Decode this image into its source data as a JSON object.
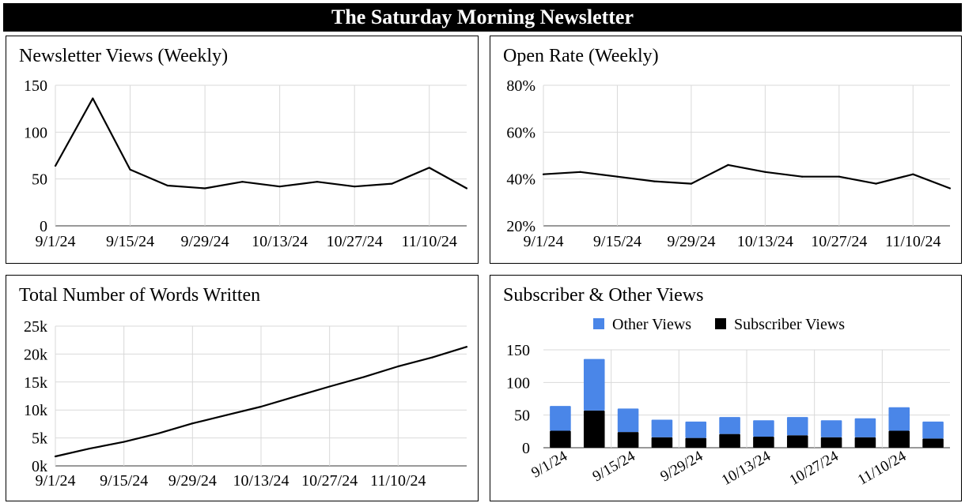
{
  "banner": {
    "title": "The Saturday Morning Newsletter"
  },
  "chart_data": [
    {
      "id": "views",
      "type": "line",
      "title": "Newsletter Views (Weekly)",
      "ylim": [
        0,
        150
      ],
      "yticks": [
        "0",
        "50",
        "100",
        "150"
      ],
      "ytick_values": [
        0,
        50,
        100,
        150
      ],
      "xtick_labels": [
        "9/1/24",
        "9/15/24",
        "9/29/24",
        "10/13/24",
        "10/27/24",
        "11/10/24"
      ],
      "x": [
        "9/1/24",
        "9/8/24",
        "9/15/24",
        "9/22/24",
        "9/29/24",
        "10/6/24",
        "10/13/24",
        "10/20/24",
        "10/27/24",
        "11/3/24",
        "11/10/24",
        "11/17/24"
      ],
      "values": [
        64,
        136,
        60,
        43,
        40,
        47,
        42,
        47,
        42,
        45,
        62,
        40
      ],
      "grid": true,
      "line_color": "#000000"
    },
    {
      "id": "open",
      "type": "line",
      "title": "Open Rate (Weekly)",
      "ylim": [
        0.2,
        0.8
      ],
      "yticks": [
        "20%",
        "40%",
        "60%",
        "80%"
      ],
      "ytick_values": [
        0.2,
        0.4,
        0.6,
        0.8
      ],
      "xtick_labels": [
        "9/1/24",
        "9/15/24",
        "9/29/24",
        "10/13/24",
        "10/27/24",
        "11/10/24"
      ],
      "x": [
        "9/1/24",
        "9/8/24",
        "9/15/24",
        "9/22/24",
        "9/29/24",
        "10/6/24",
        "10/13/24",
        "10/20/24",
        "10/27/24",
        "11/3/24",
        "11/10/24",
        "11/17/24"
      ],
      "values": [
        0.42,
        0.43,
        0.41,
        0.39,
        0.38,
        0.46,
        0.43,
        0.41,
        0.41,
        0.38,
        0.42,
        0.36
      ],
      "grid": true,
      "line_color": "#000000"
    },
    {
      "id": "words",
      "type": "line",
      "title": "Total Number of Words Written",
      "ylim": [
        0,
        25000
      ],
      "yticks": [
        "0k",
        "5k",
        "10k",
        "15k",
        "20k",
        "25k"
      ],
      "ytick_values": [
        0,
        5000,
        10000,
        15000,
        20000,
        25000
      ],
      "xtick_labels": [
        "9/1/24",
        "9/15/24",
        "9/29/24",
        "10/13/24",
        "10/27/24",
        "11/10/24"
      ],
      "x": [
        "9/1/24",
        "9/8/24",
        "9/15/24",
        "9/22/24",
        "9/29/24",
        "10/6/24",
        "10/13/24",
        "10/20/24",
        "10/27/24",
        "11/3/24",
        "11/10/24",
        "11/17/24",
        "11/24/24"
      ],
      "values": [
        1700,
        3100,
        4300,
        5800,
        7600,
        9100,
        10600,
        12400,
        14200,
        15900,
        17800,
        19400,
        21300
      ],
      "grid": true,
      "line_color": "#000000"
    },
    {
      "id": "subs",
      "type": "bar",
      "stacked": true,
      "title": "Subscriber & Other Views",
      "ylim": [
        0,
        150
      ],
      "yticks": [
        "0",
        "50",
        "100",
        "150"
      ],
      "ytick_values": [
        0,
        50,
        100,
        150
      ],
      "xtick_labels": [
        "9/1/24",
        "9/15/24",
        "9/29/24",
        "10/13/24",
        "10/27/24",
        "11/10/24"
      ],
      "categories": [
        "9/1/24",
        "9/8/24",
        "9/15/24",
        "9/22/24",
        "9/29/24",
        "10/6/24",
        "10/13/24",
        "10/20/24",
        "10/27/24",
        "11/3/24",
        "11/10/24",
        "11/17/24"
      ],
      "series": [
        {
          "name": "Subscriber Views",
          "color": "#000000",
          "values": [
            26,
            57,
            24,
            16,
            15,
            21,
            17,
            19,
            16,
            16,
            26,
            14
          ]
        },
        {
          "name": "Other Views",
          "color": "#4a86e8",
          "values": [
            38,
            79,
            36,
            27,
            25,
            26,
            25,
            28,
            26,
            29,
            36,
            26
          ]
        }
      ],
      "legend": {
        "position": "top",
        "order": [
          "Other Views",
          "Subscriber Views"
        ]
      },
      "grid": true
    }
  ]
}
